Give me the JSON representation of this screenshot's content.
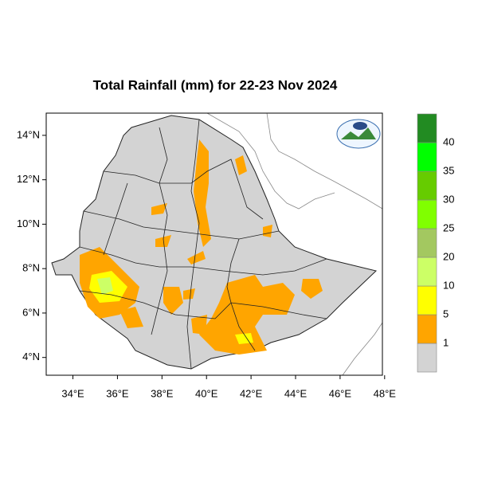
{
  "map": {
    "title": "Total Rainfall (mm) for 22-23 Nov 2024",
    "lon_range": [
      32.8,
      47.9
    ],
    "lat_range": [
      3.2,
      15
    ],
    "lon_ticks": [
      {
        "value": 34,
        "label": "34°E"
      },
      {
        "value": 36,
        "label": "36°E"
      },
      {
        "value": 38,
        "label": "38°E"
      },
      {
        "value": 40,
        "label": "40°E"
      },
      {
        "value": 42,
        "label": "42°E"
      },
      {
        "value": 44,
        "label": "44°E"
      },
      {
        "value": 46,
        "label": "46°E"
      },
      {
        "value": 48,
        "label": "48°E"
      }
    ],
    "lat_ticks": [
      {
        "value": 4,
        "label": "4°N"
      },
      {
        "value": 6,
        "label": "6°N"
      },
      {
        "value": 8,
        "label": "8°N"
      },
      {
        "value": 10,
        "label": "10°N"
      },
      {
        "value": 12,
        "label": "12°N"
      },
      {
        "value": 14,
        "label": "14°N"
      }
    ],
    "colorbar": {
      "levels": [
        1,
        5,
        10,
        20,
        25,
        30,
        35,
        40
      ],
      "colors": [
        "#d3d3d3",
        "#ffa500",
        "#ffff00",
        "#ccff66",
        "#a3c860",
        "#80ff00",
        "#66cc00",
        "#00ff00",
        "#228b22"
      ]
    }
  }
}
